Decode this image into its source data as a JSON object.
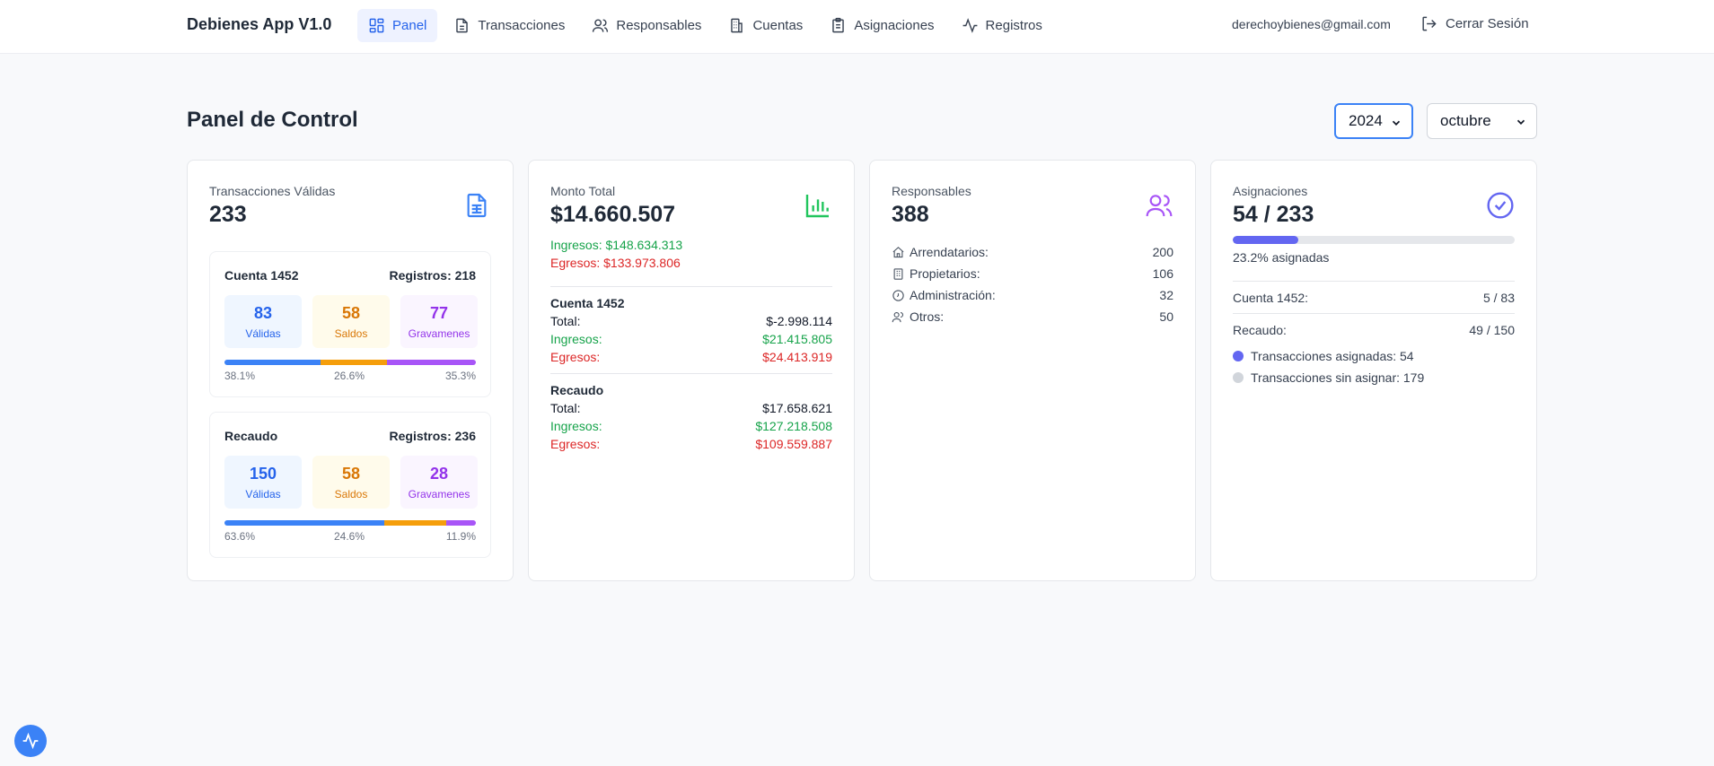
{
  "nav": {
    "brand": "Debienes App V1.0",
    "items": [
      {
        "label": "Panel",
        "icon": "dashboard-icon"
      },
      {
        "label": "Transacciones",
        "icon": "document-icon"
      },
      {
        "label": "Responsables",
        "icon": "users-icon"
      },
      {
        "label": "Cuentas",
        "icon": "building-icon"
      },
      {
        "label": "Asignaciones",
        "icon": "clipboard-icon"
      },
      {
        "label": "Registros",
        "icon": "activity-icon"
      }
    ],
    "email": "derechoybienes@gmail.com",
    "logout": "Cerrar Sesión"
  },
  "header": {
    "title": "Panel de Control",
    "year": "2024",
    "month": "octubre"
  },
  "colors": {
    "accent": "#2563eb",
    "green": "#16a34a",
    "red": "#dc2626",
    "amber": "#d97706",
    "purple": "#9333ea",
    "indigo": "#6366f1"
  },
  "card_transacciones": {
    "label": "Transacciones Válidas",
    "value": "233",
    "cuenta": {
      "title": "Cuenta 1452",
      "registros": "Registros: 218",
      "validas": "83",
      "validas_label": "Válidas",
      "saldos": "58",
      "saldos_label": "Saldos",
      "gravamenes": "77",
      "gravamenes_label": "Gravamenes",
      "pct": [
        "38.1%",
        "26.6%",
        "35.3%"
      ],
      "shares": [
        38.1,
        26.6,
        35.3
      ]
    },
    "recaudo": {
      "title": "Recaudo",
      "registros": "Registros: 236",
      "validas": "150",
      "validas_label": "Válidas",
      "saldos": "58",
      "saldos_label": "Saldos",
      "gravamenes": "28",
      "gravamenes_label": "Gravamenes",
      "pct": [
        "63.6%",
        "24.6%",
        "11.9%"
      ],
      "shares": [
        63.6,
        24.6,
        11.9
      ]
    }
  },
  "card_monto": {
    "label": "Monto Total",
    "value": "$14.660.507",
    "ingresos": "Ingresos: $148.634.313",
    "egresos": "Egresos: $133.973.806",
    "cuenta": {
      "title": "Cuenta 1452",
      "total_label": "Total:",
      "total": "$-2.998.114",
      "ingresos_label": "Ingresos:",
      "ingresos": "$21.415.805",
      "egresos_label": "Egresos:",
      "egresos": "$24.413.919"
    },
    "recaudo": {
      "title": "Recaudo",
      "total_label": "Total:",
      "total": "$17.658.621",
      "ingresos_label": "Ingresos:",
      "ingresos": "$127.218.508",
      "egresos_label": "Egresos:",
      "egresos": "$109.559.887"
    }
  },
  "card_responsables": {
    "label": "Responsables",
    "value": "388",
    "rows": [
      {
        "label": "Arrendatarios:",
        "value": "200",
        "icon": "home-icon"
      },
      {
        "label": "Propietarios:",
        "value": "106",
        "icon": "building-icon"
      },
      {
        "label": "Administración:",
        "value": "32",
        "icon": "circle-icon"
      },
      {
        "label": "Otros:",
        "value": "50",
        "icon": "users-icon"
      }
    ]
  },
  "card_asignaciones": {
    "label": "Asignaciones",
    "value": "54 / 233",
    "progress_fraction": 0.232,
    "progress_text": "23.2% asignadas",
    "cuenta_label": "Cuenta 1452:",
    "cuenta_value": "5 / 83",
    "recaudo_label": "Recaudo:",
    "recaudo_value": "49 / 150",
    "legend_asignadas": "Transacciones asignadas: 54",
    "legend_sin": "Transacciones sin asignar: 179"
  }
}
